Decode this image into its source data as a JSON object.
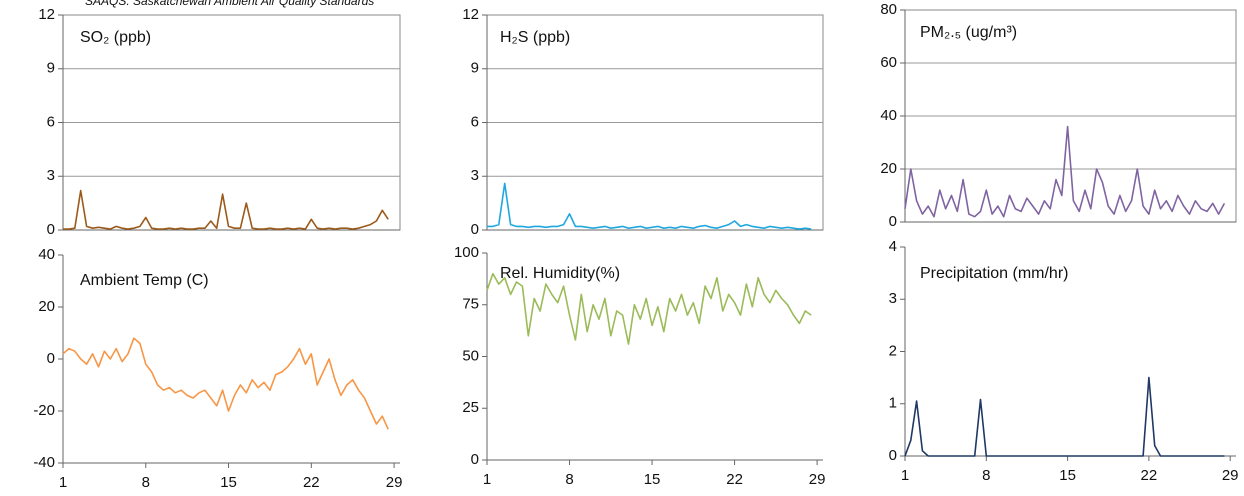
{
  "note": "SAAQS: Saskatchewan Ambient Air Quality Standards",
  "chart_data": [
    {
      "type": "line",
      "title": "SO₂ (ppb)",
      "color": "#9c5a1a",
      "grid": true,
      "x": [
        1,
        1.5,
        2,
        2.5,
        3,
        3.5,
        4,
        4.5,
        5,
        5.5,
        6,
        6.5,
        7,
        7.5,
        8,
        8.5,
        9,
        9.5,
        10,
        10.5,
        11,
        11.5,
        12,
        12.5,
        13,
        13.5,
        14,
        14.5,
        15,
        15.5,
        16,
        16.5,
        17,
        17.5,
        18,
        18.5,
        19,
        19.5,
        20,
        20.5,
        21,
        21.5,
        22,
        22.5,
        23,
        23.5,
        24,
        24.5,
        25,
        25.5,
        26,
        26.5,
        27,
        27.5,
        28,
        28.5
      ],
      "values": [
        0.05,
        0.05,
        0.1,
        2.2,
        0.2,
        0.1,
        0.15,
        0.1,
        0.05,
        0.2,
        0.1,
        0.05,
        0.1,
        0.2,
        0.7,
        0.1,
        0.05,
        0.05,
        0.1,
        0.05,
        0.1,
        0.05,
        0.05,
        0.1,
        0.1,
        0.5,
        0.1,
        2.0,
        0.2,
        0.1,
        0.1,
        1.5,
        0.1,
        0.05,
        0.05,
        0.1,
        0.05,
        0.05,
        0.1,
        0.05,
        0.1,
        0.05,
        0.6,
        0.1,
        0.05,
        0.1,
        0.05,
        0.1,
        0.1,
        0.05,
        0.1,
        0.2,
        0.3,
        0.5,
        1.1,
        0.6
      ],
      "xlim": [
        1,
        29.5
      ],
      "ylim": [
        0,
        12
      ],
      "yticks": [
        0,
        3,
        6,
        9,
        12
      ]
    },
    {
      "type": "line",
      "title": "H₂S  (ppb)",
      "color": "#1fa8e0",
      "grid": true,
      "x": [
        1,
        1.5,
        2,
        2.5,
        3,
        3.5,
        4,
        4.5,
        5,
        5.5,
        6,
        6.5,
        7,
        7.5,
        8,
        8.5,
        9,
        9.5,
        10,
        10.5,
        11,
        11.5,
        12,
        12.5,
        13,
        13.5,
        14,
        14.5,
        15,
        15.5,
        16,
        16.5,
        17,
        17.5,
        18,
        18.5,
        19,
        19.5,
        20,
        20.5,
        21,
        21.5,
        22,
        22.5,
        23,
        23.5,
        24,
        24.5,
        25,
        25.5,
        26,
        26.5,
        27,
        27.5,
        28,
        28.5
      ],
      "values": [
        0.2,
        0.2,
        0.3,
        2.6,
        0.3,
        0.2,
        0.2,
        0.15,
        0.2,
        0.2,
        0.15,
        0.2,
        0.2,
        0.3,
        0.9,
        0.2,
        0.2,
        0.15,
        0.1,
        0.15,
        0.2,
        0.1,
        0.15,
        0.2,
        0.1,
        0.15,
        0.2,
        0.1,
        0.15,
        0.2,
        0.1,
        0.15,
        0.1,
        0.2,
        0.15,
        0.1,
        0.2,
        0.25,
        0.15,
        0.1,
        0.2,
        0.3,
        0.5,
        0.2,
        0.3,
        0.2,
        0.15,
        0.1,
        0.2,
        0.15,
        0.1,
        0.15,
        0.1,
        0.05,
        0.1,
        0.05
      ],
      "xlim": [
        1,
        29.5
      ],
      "ylim": [
        0,
        12
      ],
      "yticks": [
        0,
        3,
        6,
        9,
        12
      ]
    },
    {
      "type": "line",
      "title": "PM₂.₅ (ug/m³)",
      "color": "#8064a2",
      "grid": true,
      "x": [
        1,
        1.5,
        2,
        2.5,
        3,
        3.5,
        4,
        4.5,
        5,
        5.5,
        6,
        6.5,
        7,
        7.5,
        8,
        8.5,
        9,
        9.5,
        10,
        10.5,
        11,
        11.5,
        12,
        12.5,
        13,
        13.5,
        14,
        14.5,
        15,
        15.5,
        16,
        16.5,
        17,
        17.5,
        18,
        18.5,
        19,
        19.5,
        20,
        20.5,
        21,
        21.5,
        22,
        22.5,
        23,
        23.5,
        24,
        24.5,
        25,
        25.5,
        26,
        26.5,
        27,
        27.5,
        28,
        28.5
      ],
      "values": [
        5,
        20,
        8,
        3,
        6,
        2,
        12,
        5,
        10,
        4,
        16,
        3,
        2,
        4,
        12,
        3,
        6,
        2,
        10,
        5,
        4,
        9,
        6,
        3,
        8,
        5,
        16,
        10,
        36,
        8,
        4,
        12,
        5,
        20,
        15,
        6,
        3,
        10,
        4,
        8,
        20,
        6,
        3,
        12,
        5,
        8,
        4,
        10,
        6,
        3,
        8,
        5,
        4,
        7,
        3,
        7
      ],
      "xlim": [
        1,
        29.5
      ],
      "ylim": [
        0,
        80
      ],
      "yticks": [
        0,
        20,
        40,
        60,
        80
      ]
    },
    {
      "type": "line",
      "title": "Ambient Temp (C)",
      "color": "#f79646",
      "grid": false,
      "x": [
        1,
        1.5,
        2,
        2.5,
        3,
        3.5,
        4,
        4.5,
        5,
        5.5,
        6,
        6.5,
        7,
        7.5,
        8,
        8.5,
        9,
        9.5,
        10,
        10.5,
        11,
        11.5,
        12,
        12.5,
        13,
        13.5,
        14,
        14.5,
        15,
        15.5,
        16,
        16.5,
        17,
        17.5,
        18,
        18.5,
        19,
        19.5,
        20,
        20.5,
        21,
        21.5,
        22,
        22.5,
        23,
        23.5,
        24,
        24.5,
        25,
        25.5,
        26,
        26.5,
        27,
        27.5,
        28,
        28.5
      ],
      "values": [
        2,
        4,
        3,
        0,
        -2,
        2,
        -3,
        3,
        0,
        4,
        -1,
        2,
        8,
        6,
        -2,
        -5,
        -10,
        -12,
        -11,
        -13,
        -12,
        -14,
        -15,
        -13,
        -12,
        -15,
        -18,
        -12,
        -20,
        -14,
        -10,
        -13,
        -8,
        -11,
        -9,
        -12,
        -6,
        -5,
        -3,
        0,
        4,
        -2,
        2,
        -10,
        -5,
        0,
        -8,
        -14,
        -10,
        -8,
        -12,
        -15,
        -20,
        -25,
        -22,
        -27
      ],
      "xlim": [
        1,
        29.5
      ],
      "xticks": [
        1,
        8,
        15,
        22,
        29
      ],
      "ylim": [
        -40,
        40
      ],
      "yticks": [
        -40,
        -20,
        0,
        20,
        40
      ]
    },
    {
      "type": "line",
      "title": "Rel. Humidity(%)",
      "color": "#9bbb59",
      "grid": false,
      "x": [
        1,
        1.5,
        2,
        2.5,
        3,
        3.5,
        4,
        4.5,
        5,
        5.5,
        6,
        6.5,
        7,
        7.5,
        8,
        8.5,
        9,
        9.5,
        10,
        10.5,
        11,
        11.5,
        12,
        12.5,
        13,
        13.5,
        14,
        14.5,
        15,
        15.5,
        16,
        16.5,
        17,
        17.5,
        18,
        18.5,
        19,
        19.5,
        20,
        20.5,
        21,
        21.5,
        22,
        22.5,
        23,
        23.5,
        24,
        24.5,
        25,
        25.5,
        26,
        26.5,
        27,
        27.5,
        28,
        28.5
      ],
      "values": [
        82,
        90,
        85,
        88,
        80,
        86,
        84,
        60,
        78,
        72,
        85,
        80,
        76,
        84,
        70,
        58,
        80,
        62,
        75,
        68,
        78,
        60,
        72,
        70,
        56,
        75,
        68,
        78,
        65,
        74,
        62,
        78,
        72,
        80,
        70,
        76,
        66,
        84,
        78,
        88,
        72,
        80,
        76,
        70,
        85,
        74,
        88,
        80,
        76,
        82,
        78,
        75,
        70,
        66,
        72,
        70
      ],
      "xlim": [
        1,
        29.5
      ],
      "xticks": [
        1,
        8,
        15,
        22,
        29
      ],
      "ylim": [
        0,
        100
      ],
      "yticks": [
        0,
        25,
        50,
        75,
        100
      ]
    },
    {
      "type": "line",
      "title": "Precipitation (mm/hr)",
      "color": "#1f3864",
      "grid": false,
      "x": [
        1,
        1.5,
        2,
        2.5,
        3,
        3.5,
        4,
        4.5,
        5,
        5.5,
        6,
        6.5,
        7,
        7.5,
        8,
        8.5,
        9,
        9.5,
        10,
        10.5,
        11,
        11.5,
        12,
        12.5,
        13,
        13.5,
        14,
        14.5,
        15,
        15.5,
        16,
        16.5,
        17,
        17.5,
        18,
        18.5,
        19,
        19.5,
        20,
        20.5,
        21,
        21.5,
        22,
        22.5,
        23,
        23.5,
        24,
        24.5,
        25,
        25.5,
        26,
        26.5,
        27,
        27.5,
        28,
        28.5
      ],
      "values": [
        0,
        0.3,
        1.05,
        0.1,
        0,
        0,
        0,
        0,
        0,
        0,
        0,
        0,
        0,
        1.08,
        0,
        0,
        0,
        0,
        0,
        0,
        0,
        0,
        0,
        0,
        0,
        0,
        0,
        0,
        0,
        0,
        0,
        0,
        0,
        0,
        0,
        0,
        0,
        0,
        0,
        0,
        0,
        0,
        1.5,
        0.2,
        0,
        0,
        0,
        0,
        0,
        0,
        0,
        0,
        0,
        0,
        0,
        0
      ],
      "xlim": [
        1,
        29.5
      ],
      "xticks": [
        1,
        8,
        15,
        22,
        29
      ],
      "ylim": [
        0,
        4
      ],
      "yticks": [
        0,
        1,
        2,
        3,
        4
      ]
    }
  ]
}
